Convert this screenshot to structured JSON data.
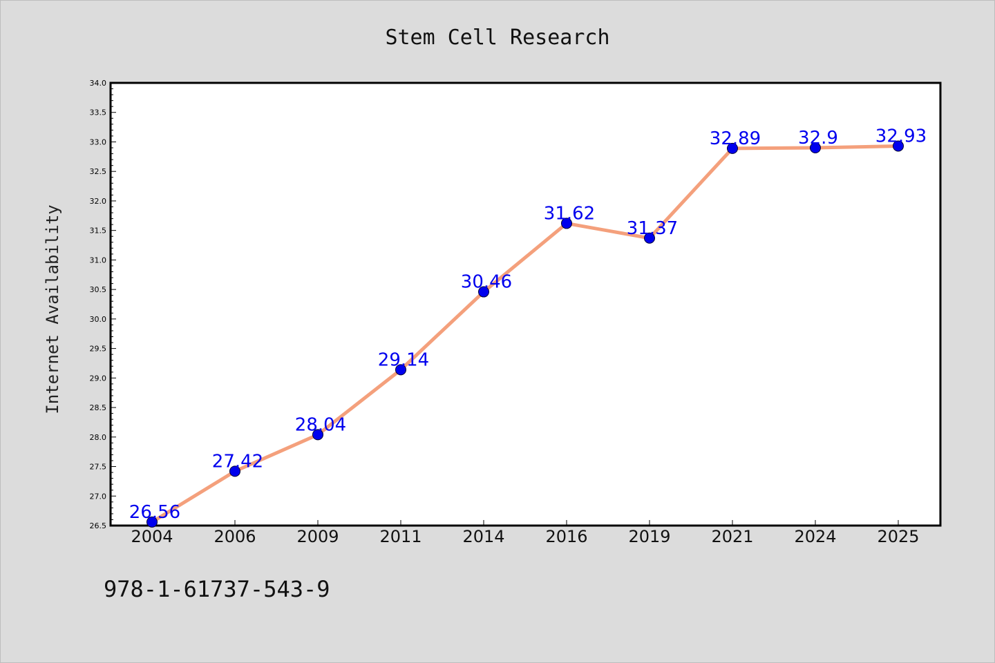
{
  "footer": {
    "code": "978-1-61737-543-9"
  },
  "chart_data": {
    "type": "line",
    "title": "Stem Cell Research",
    "xlabel": "",
    "ylabel": "Internet Availability",
    "categories": [
      "2004",
      "2006",
      "2009",
      "2011",
      "2014",
      "2016",
      "2019",
      "2021",
      "2024",
      "2025"
    ],
    "series": [
      {
        "values": [
          26.56,
          27.42,
          28.04,
          29.14,
          30.46,
          31.62,
          31.37,
          32.89,
          32.9,
          32.93
        ],
        "line_color": "#f4a07c",
        "marker_color": "#0000ee"
      }
    ],
    "data_labels": [
      "26.56",
      "27.42",
      "28.04",
      "29.14",
      "30.46",
      "31.62",
      "31.37",
      "32.89",
      "32.9",
      "32.93"
    ],
    "ylim": [
      26.5,
      34.0
    ],
    "yticks": [
      "26.5",
      "27.0",
      "27.5",
      "28.0",
      "28.5",
      "29.0",
      "29.5",
      "30.0",
      "30.5",
      "31.0",
      "31.5",
      "32.0",
      "32.5",
      "33.0",
      "33.5",
      "34.0"
    ],
    "grid": false,
    "legend": "none"
  }
}
